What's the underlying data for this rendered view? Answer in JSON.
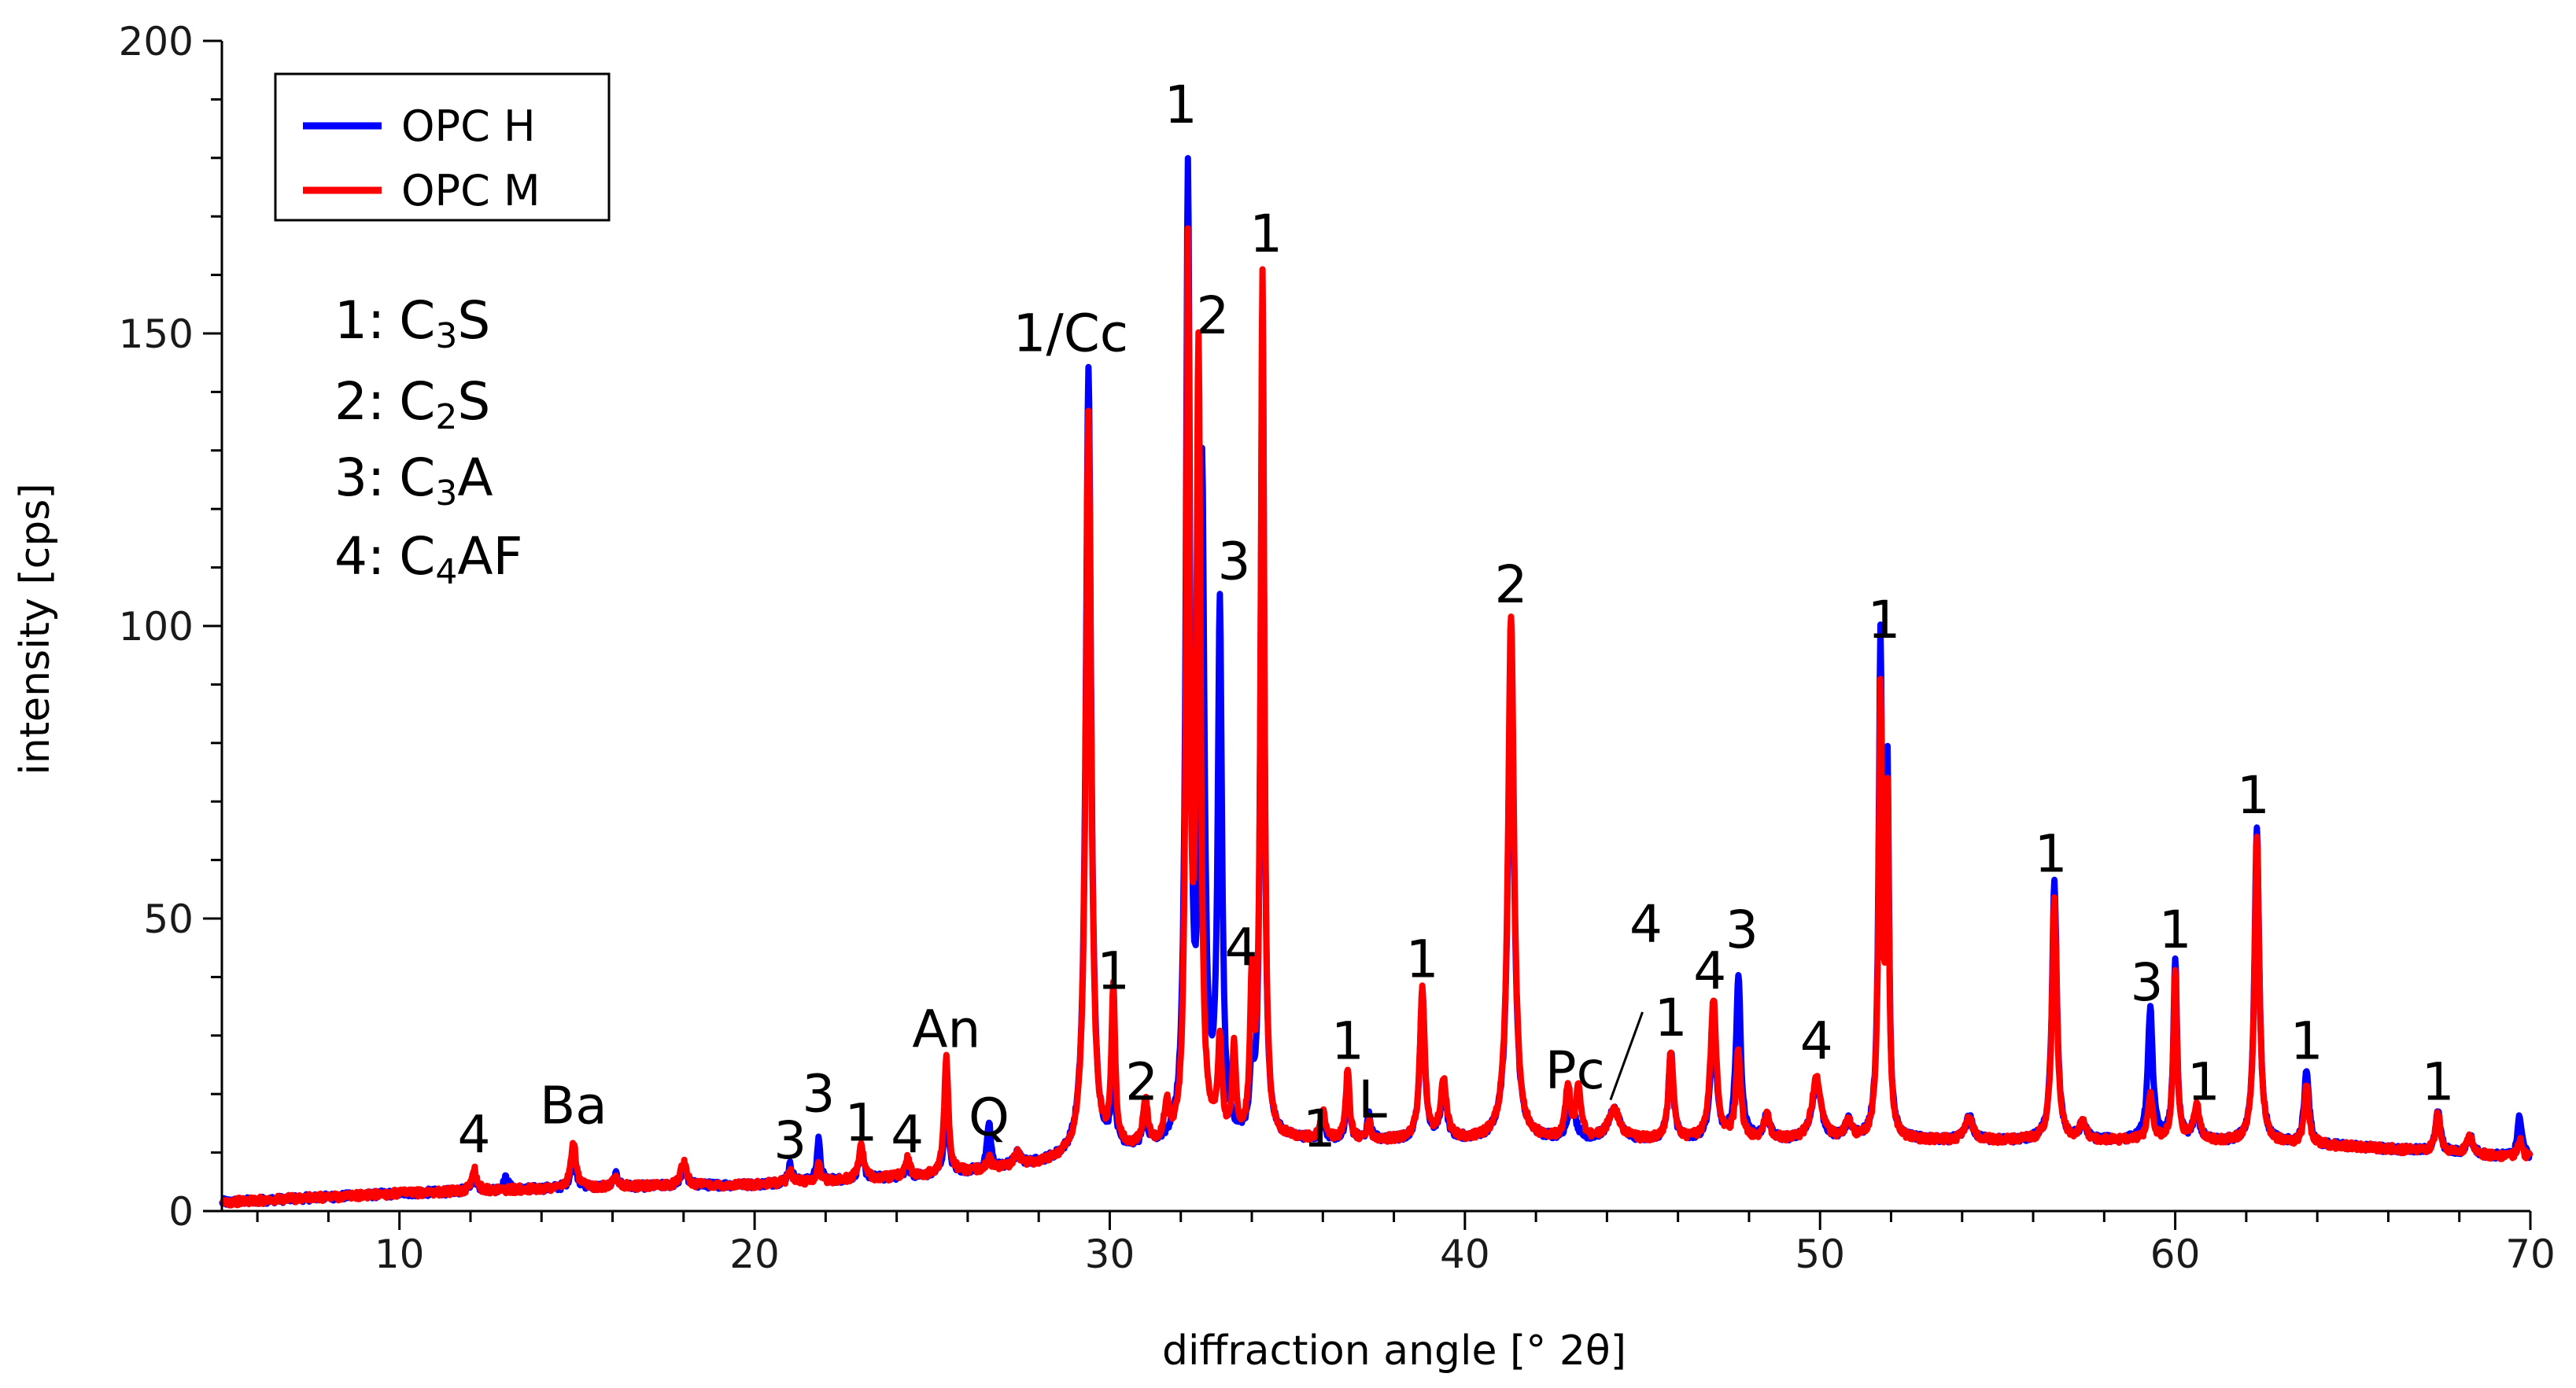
{
  "chart_data": {
    "type": "line",
    "title": "",
    "xlabel": "diffraction angle [° 2θ]",
    "ylabel": "intensity [cps]",
    "xlim": [
      5,
      70
    ],
    "ylim": [
      0,
      200
    ],
    "x_ticks": [
      10,
      20,
      30,
      40,
      50,
      60,
      70
    ],
    "y_ticks": [
      0,
      50,
      100,
      150,
      200
    ],
    "grid": false,
    "legend_position": "top-left",
    "series": [
      {
        "name": "OPC H",
        "color": "#0000ff",
        "baseline": [
          [
            5,
            1.5
          ],
          [
            10,
            3
          ],
          [
            15,
            4
          ],
          [
            20,
            4.5
          ],
          [
            25,
            6
          ],
          [
            28,
            8
          ],
          [
            30,
            10
          ],
          [
            35,
            12
          ],
          [
            40,
            12
          ],
          [
            45,
            12
          ],
          [
            50,
            12
          ],
          [
            55,
            12
          ],
          [
            60,
            12
          ],
          [
            65,
            11
          ],
          [
            70,
            9
          ]
        ],
        "peaks": [
          [
            12.1,
            3,
            0.08
          ],
          [
            13,
            2,
            0.08
          ],
          [
            14.9,
            6,
            0.08
          ],
          [
            16.1,
            2,
            0.08
          ],
          [
            18,
            3,
            0.1
          ],
          [
            21,
            3,
            0.08
          ],
          [
            21.8,
            7,
            0.06
          ],
          [
            23,
            5,
            0.08
          ],
          [
            24.3,
            2,
            0.08
          ],
          [
            25.4,
            10,
            0.08
          ],
          [
            26.6,
            8,
            0.06
          ],
          [
            27.4,
            2,
            0.1
          ],
          [
            29.4,
            134,
            0.09
          ],
          [
            30.1,
            14,
            0.06
          ],
          [
            31,
            4,
            0.08
          ],
          [
            32.2,
            164,
            0.07
          ],
          [
            32.6,
            112,
            0.08
          ],
          [
            33.1,
            90,
            0.07
          ],
          [
            34.0,
            10,
            0.06
          ],
          [
            34.3,
            142,
            0.06
          ],
          [
            36,
            3,
            0.08
          ],
          [
            36.7,
            9,
            0.06
          ],
          [
            37.3,
            4,
            0.06
          ],
          [
            38.8,
            25,
            0.08
          ],
          [
            39.4,
            8,
            0.1
          ],
          [
            41.3,
            85,
            0.1
          ],
          [
            43,
            6,
            0.12
          ],
          [
            44.2,
            5,
            0.2
          ],
          [
            45.8,
            15,
            0.08
          ],
          [
            47,
            18,
            0.1
          ],
          [
            47.7,
            28,
            0.08
          ],
          [
            48.5,
            4,
            0.1
          ],
          [
            49.9,
            10,
            0.15
          ],
          [
            50.8,
            3,
            0.1
          ],
          [
            51.7,
            84,
            0.06
          ],
          [
            51.9,
            60,
            0.05
          ],
          [
            54.2,
            4,
            0.12
          ],
          [
            56.6,
            44,
            0.08
          ],
          [
            57.4,
            3,
            0.1
          ],
          [
            59.3,
            23,
            0.08
          ],
          [
            60.0,
            31,
            0.06
          ],
          [
            60.6,
            5,
            0.1
          ],
          [
            62.3,
            54,
            0.08
          ],
          [
            63.7,
            13,
            0.08
          ],
          [
            67.4,
            7,
            0.08
          ],
          [
            68.3,
            3,
            0.1
          ],
          [
            69.7,
            7,
            0.08
          ]
        ]
      },
      {
        "name": "OPC M",
        "color": "#ff0000",
        "baseline": [
          [
            5,
            1.5
          ],
          [
            10,
            3
          ],
          [
            15,
            4
          ],
          [
            20,
            4.5
          ],
          [
            25,
            6
          ],
          [
            28,
            8
          ],
          [
            30,
            10
          ],
          [
            35,
            12
          ],
          [
            40,
            12
          ],
          [
            45,
            12
          ],
          [
            50,
            12
          ],
          [
            55,
            12
          ],
          [
            60,
            12
          ],
          [
            65,
            11
          ],
          [
            70,
            9
          ]
        ],
        "peaks": [
          [
            12.1,
            4,
            0.08
          ],
          [
            14.9,
            8,
            0.08
          ],
          [
            16.1,
            2,
            0.08
          ],
          [
            18,
            4,
            0.1
          ],
          [
            21,
            2,
            0.08
          ],
          [
            21.8,
            3,
            0.06
          ],
          [
            23,
            6,
            0.08
          ],
          [
            24.3,
            3,
            0.08
          ],
          [
            25.4,
            20,
            0.07
          ],
          [
            26.6,
            2,
            0.06
          ],
          [
            27.4,
            2,
            0.1
          ],
          [
            29.4,
            127,
            0.09
          ],
          [
            30.1,
            27,
            0.06
          ],
          [
            31,
            8,
            0.08
          ],
          [
            31.6,
            6,
            0.08
          ],
          [
            32.2,
            150,
            0.06
          ],
          [
            32.5,
            133,
            0.07
          ],
          [
            33.1,
            16,
            0.07
          ],
          [
            33.5,
            15,
            0.06
          ],
          [
            34.0,
            25,
            0.06
          ],
          [
            34.3,
            148,
            0.06
          ],
          [
            36,
            5,
            0.08
          ],
          [
            36.7,
            12,
            0.06
          ],
          [
            37.3,
            3,
            0.06
          ],
          [
            38.8,
            26,
            0.08
          ],
          [
            39.4,
            10,
            0.1
          ],
          [
            41.3,
            90,
            0.1
          ],
          [
            42.9,
            9,
            0.08
          ],
          [
            43.2,
            9,
            0.08
          ],
          [
            44.2,
            5,
            0.2
          ],
          [
            45.8,
            15,
            0.08
          ],
          [
            47,
            24,
            0.1
          ],
          [
            47.7,
            15,
            0.08
          ],
          [
            48.5,
            4,
            0.1
          ],
          [
            49.9,
            11,
            0.15
          ],
          [
            50.8,
            3,
            0.1
          ],
          [
            51.7,
            76,
            0.06
          ],
          [
            51.9,
            55,
            0.05
          ],
          [
            54.2,
            4,
            0.12
          ],
          [
            56.6,
            41,
            0.08
          ],
          [
            57.4,
            3,
            0.1
          ],
          [
            59.3,
            8,
            0.08
          ],
          [
            60.0,
            29,
            0.06
          ],
          [
            60.6,
            6,
            0.1
          ],
          [
            62.3,
            52,
            0.08
          ],
          [
            63.7,
            10,
            0.08
          ],
          [
            67.4,
            7,
            0.08
          ],
          [
            68.3,
            3,
            0.1
          ],
          [
            69.7,
            3,
            0.08
          ]
        ]
      }
    ],
    "annotations": [
      {
        "text": "4",
        "x": 12.1,
        "y": 10
      },
      {
        "text": "Ba",
        "x": 14.9,
        "y": 15
      },
      {
        "text": "3",
        "x": 21.0,
        "y": 9
      },
      {
        "text": "3",
        "x": 21.8,
        "y": 17
      },
      {
        "text": "1",
        "x": 23.0,
        "y": 12
      },
      {
        "text": "4",
        "x": 24.3,
        "y": 10
      },
      {
        "text": "An",
        "x": 25.4,
        "y": 28
      },
      {
        "text": "Q",
        "x": 26.6,
        "y": 13
      },
      {
        "text": "1/Cc",
        "x": 28.9,
        "y": 147
      },
      {
        "text": "1",
        "x": 30.1,
        "y": 38
      },
      {
        "text": "2",
        "x": 30.9,
        "y": 19
      },
      {
        "text": "1",
        "x": 32.0,
        "y": 186
      },
      {
        "text": "2",
        "x": 32.9,
        "y": 150
      },
      {
        "text": "3",
        "x": 33.5,
        "y": 108
      },
      {
        "text": "4",
        "x": 33.7,
        "y": 42
      },
      {
        "text": "1",
        "x": 34.4,
        "y": 164
      },
      {
        "text": "1",
        "x": 35.9,
        "y": 11
      },
      {
        "text": "1",
        "x": 36.7,
        "y": 26
      },
      {
        "text": "L",
        "x": 37.4,
        "y": 16
      },
      {
        "text": "1",
        "x": 38.8,
        "y": 40
      },
      {
        "text": "2",
        "x": 41.3,
        "y": 104
      },
      {
        "text": "Pc",
        "x": 43.1,
        "y": 21
      },
      {
        "text": "4",
        "x": 45.1,
        "y": 46
      },
      {
        "text": "1",
        "x": 45.8,
        "y": 30
      },
      {
        "text": "4",
        "x": 46.9,
        "y": 38
      },
      {
        "text": "3",
        "x": 47.8,
        "y": 45
      },
      {
        "text": "4",
        "x": 49.9,
        "y": 26
      },
      {
        "text": "1",
        "x": 51.8,
        "y": 98
      },
      {
        "text": "1",
        "x": 56.5,
        "y": 58
      },
      {
        "text": "3",
        "x": 59.2,
        "y": 36
      },
      {
        "text": "1",
        "x": 60.0,
        "y": 45
      },
      {
        "text": "1",
        "x": 60.8,
        "y": 19
      },
      {
        "text": "1",
        "x": 62.2,
        "y": 68
      },
      {
        "text": "1",
        "x": 63.7,
        "y": 26
      },
      {
        "text": "1",
        "x": 67.4,
        "y": 19
      }
    ],
    "leader_line": {
      "from": [
        45.0,
        34
      ],
      "to": [
        44.1,
        19
      ]
    },
    "phase_key": [
      {
        "num": "1:",
        "main": "C",
        "sub": "3",
        "rest": "S"
      },
      {
        "num": "2:",
        "main": "C",
        "sub": "2",
        "rest": "S"
      },
      {
        "num": "3:",
        "main": "C",
        "sub": "3",
        "rest": "A"
      },
      {
        "num": "4:",
        "main": "C",
        "sub": "4",
        "rest": "AF"
      }
    ]
  }
}
